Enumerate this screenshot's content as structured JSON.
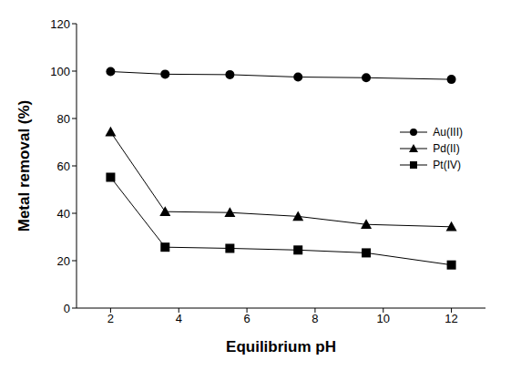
{
  "chart_data": {
    "type": "line",
    "x_label": "Equilibrium pH",
    "y_label": "Metal removal (%)",
    "x": [
      2,
      3.6,
      5.5,
      7.5,
      9.5,
      12
    ],
    "xlim": [
      1,
      13
    ],
    "xticks": [
      2,
      4,
      6,
      8,
      10,
      12
    ],
    "ylim": [
      0,
      120
    ],
    "yticks": [
      0,
      20,
      40,
      60,
      80,
      100,
      120
    ],
    "grid": false,
    "legend": "right",
    "series": [
      {
        "name": "Au(III)",
        "color": "#000000",
        "marker": "circle",
        "values": [
          99.8,
          98.7,
          98.5,
          97.5,
          97.2,
          96.5
        ]
      },
      {
        "name": "Pd(II)",
        "color": "#000000",
        "marker": "triangle",
        "values": [
          74.3,
          40.7,
          40.3,
          38.7,
          35.3,
          34.3
        ]
      },
      {
        "name": "Pt(IV)",
        "color": "#000000",
        "marker": "square",
        "values": [
          55.2,
          25.7,
          25.2,
          24.5,
          23.3,
          18.2
        ]
      }
    ]
  }
}
